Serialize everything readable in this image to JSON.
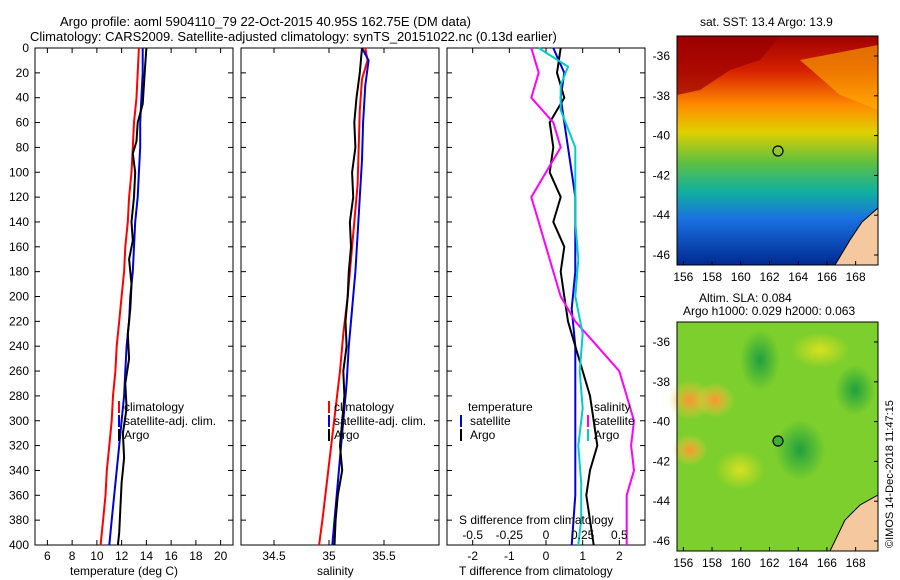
{
  "header": {
    "line1": "Argo profile: aoml 5904110_79 22-Oct-2015 40.95S 162.75E (DM data)",
    "line2": "Climatology: CARS2009. Satellite-adjusted climatology: synTS_20151022.nc (0.13d earlier)"
  },
  "colors": {
    "climatology": "#ff0000",
    "satellite": "#0000dd",
    "argo": "#000000",
    "salinity_diff": "#ff00ff",
    "argo_sal_diff": "#00cccc"
  },
  "chart_data": [
    {
      "type": "line",
      "id": "temperature",
      "xlabel": "temperature (deg C)",
      "ylabel": "",
      "xlim": [
        5,
        21
      ],
      "ylim": [
        400,
        0
      ],
      "xticks": [
        "6",
        "8",
        "10",
        "12",
        "14",
        "16",
        "18",
        "20"
      ],
      "xtick_values": [
        6,
        8,
        10,
        12,
        14,
        16,
        18,
        20
      ],
      "yticks": [
        "0",
        "20",
        "40",
        "60",
        "80",
        "100",
        "120",
        "140",
        "160",
        "180",
        "200",
        "220",
        "240",
        "260",
        "280",
        "300",
        "320",
        "340",
        "360",
        "380",
        "400"
      ],
      "legend": [
        "climatology",
        "satellite-adj. clim.",
        "Argo"
      ],
      "series": [
        {
          "name": "climatology",
          "color": "#ff0000",
          "points": [
            [
              13.4,
              0
            ],
            [
              13.3,
              20
            ],
            [
              13.2,
              40
            ],
            [
              13.0,
              60
            ],
            [
              12.9,
              80
            ],
            [
              12.8,
              100
            ],
            [
              12.6,
              120
            ],
            [
              12.5,
              140
            ],
            [
              12.3,
              160
            ],
            [
              12.2,
              180
            ],
            [
              12.0,
              200
            ],
            [
              11.8,
              220
            ],
            [
              11.6,
              240
            ],
            [
              11.5,
              260
            ],
            [
              11.3,
              280
            ],
            [
              11.2,
              300
            ],
            [
              11.0,
              320
            ],
            [
              10.8,
              340
            ],
            [
              10.7,
              360
            ],
            [
              10.5,
              380
            ],
            [
              10.3,
              400
            ]
          ]
        },
        {
          "name": "satellite-adj. clim.",
          "color": "#0000dd",
          "points": [
            [
              13.7,
              0
            ],
            [
              13.7,
              20
            ],
            [
              13.6,
              40
            ],
            [
              13.5,
              60
            ],
            [
              13.5,
              80
            ],
            [
              13.4,
              100
            ],
            [
              13.3,
              120
            ],
            [
              13.1,
              140
            ],
            [
              13.0,
              160
            ],
            [
              12.9,
              180
            ],
            [
              12.7,
              200
            ],
            [
              12.6,
              220
            ],
            [
              12.4,
              240
            ],
            [
              12.3,
              260
            ],
            [
              12.2,
              280
            ],
            [
              12.0,
              300
            ],
            [
              11.8,
              320
            ],
            [
              11.6,
              340
            ],
            [
              11.4,
              360
            ],
            [
              11.2,
              380
            ],
            [
              11.0,
              400
            ]
          ]
        },
        {
          "name": "Argo",
          "color": "#000000",
          "points": [
            [
              14.0,
              0
            ],
            [
              13.9,
              15
            ],
            [
              13.8,
              30
            ],
            [
              13.7,
              45
            ],
            [
              13.3,
              60
            ],
            [
              13.2,
              75
            ],
            [
              12.9,
              85
            ],
            [
              13.1,
              100
            ],
            [
              13.0,
              120
            ],
            [
              12.8,
              140
            ],
            [
              12.9,
              155
            ],
            [
              12.6,
              170
            ],
            [
              12.8,
              190
            ],
            [
              12.7,
              210
            ],
            [
              12.5,
              230
            ],
            [
              12.6,
              250
            ],
            [
              12.3,
              270
            ],
            [
              12.4,
              290
            ],
            [
              12.1,
              310
            ],
            [
              12.2,
              330
            ],
            [
              12.0,
              350
            ],
            [
              11.9,
              370
            ],
            [
              11.8,
              390
            ],
            [
              11.7,
              400
            ]
          ]
        }
      ]
    },
    {
      "type": "line",
      "id": "salinity",
      "xlabel": "salinity",
      "xlim": [
        34.2,
        36.0
      ],
      "ylim": [
        400,
        0
      ],
      "xticks": [
        "34.5",
        "35",
        "35.5"
      ],
      "xtick_values": [
        34.5,
        35,
        35.5
      ],
      "legend": [
        "climatology",
        "satellite-adj. clim.",
        "Argo"
      ],
      "series": [
        {
          "name": "climatology",
          "color": "#ff0000",
          "points": [
            [
              35.33,
              0
            ],
            [
              35.35,
              10
            ],
            [
              35.3,
              25
            ],
            [
              35.28,
              50
            ],
            [
              35.27,
              80
            ],
            [
              35.26,
              110
            ],
            [
              35.23,
              140
            ],
            [
              35.2,
              170
            ],
            [
              35.17,
              200
            ],
            [
              35.13,
              230
            ],
            [
              35.1,
              260
            ],
            [
              35.06,
              290
            ],
            [
              35.02,
              320
            ],
            [
              34.98,
              350
            ],
            [
              34.94,
              380
            ],
            [
              34.91,
              400
            ]
          ]
        },
        {
          "name": "satellite-adj. clim.",
          "color": "#0000dd",
          "points": [
            [
              35.3,
              0
            ],
            [
              35.36,
              10
            ],
            [
              35.33,
              30
            ],
            [
              35.31,
              60
            ],
            [
              35.3,
              90
            ],
            [
              35.28,
              120
            ],
            [
              35.26,
              150
            ],
            [
              35.24,
              180
            ],
            [
              35.21,
              210
            ],
            [
              35.18,
              240
            ],
            [
              35.16,
              270
            ],
            [
              35.13,
              300
            ],
            [
              35.1,
              330
            ],
            [
              35.07,
              360
            ],
            [
              35.03,
              400
            ]
          ]
        },
        {
          "name": "Argo",
          "color": "#000000",
          "points": [
            [
              35.3,
              0
            ],
            [
              35.28,
              20
            ],
            [
              35.25,
              40
            ],
            [
              35.23,
              60
            ],
            [
              35.24,
              80
            ],
            [
              35.21,
              100
            ],
            [
              35.22,
              120
            ],
            [
              35.19,
              140
            ],
            [
              35.2,
              160
            ],
            [
              35.18,
              180
            ],
            [
              35.17,
              200
            ],
            [
              35.15,
              220
            ],
            [
              35.16,
              240
            ],
            [
              35.13,
              260
            ],
            [
              35.14,
              280
            ],
            [
              35.12,
              300
            ],
            [
              35.1,
              320
            ],
            [
              35.12,
              340
            ],
            [
              35.08,
              360
            ],
            [
              35.06,
              380
            ],
            [
              35.05,
              400
            ]
          ]
        }
      ]
    },
    {
      "type": "line",
      "id": "difference",
      "xlabel": "T difference from climatology",
      "x2label": "S difference from climatology",
      "xlim": [
        -2.7,
        2.7
      ],
      "x2lim": [
        -0.675,
        0.675
      ],
      "ylim": [
        400,
        0
      ],
      "xticks": [
        "-2",
        "-1",
        "0",
        "1",
        "2"
      ],
      "xtick_values": [
        -2,
        -1,
        0,
        1,
        2
      ],
      "x2ticks": [
        "-0.5",
        "-0.25",
        "0",
        "0.25",
        "0.5"
      ],
      "x2tick_values": [
        -0.5,
        -0.25,
        0,
        0.25,
        0.5
      ],
      "legend_left": [
        "temperature",
        "satellite",
        "Argo"
      ],
      "legend_right": [
        "salinity",
        "satellite",
        "Argo"
      ],
      "series": [
        {
          "name": "T satellite",
          "color": "#0000dd",
          "points": [
            [
              0.2,
              0
            ],
            [
              0.5,
              20
            ],
            [
              0.4,
              40
            ],
            [
              0.5,
              60
            ],
            [
              0.6,
              80
            ],
            [
              0.7,
              100
            ],
            [
              0.8,
              120
            ],
            [
              0.8,
              150
            ],
            [
              0.8,
              180
            ],
            [
              0.7,
              210
            ],
            [
              0.8,
              240
            ],
            [
              0.8,
              270
            ],
            [
              0.8,
              300
            ],
            [
              0.8,
              330
            ],
            [
              0.8,
              360
            ],
            [
              0.7,
              400
            ]
          ]
        },
        {
          "name": "T Argo",
          "color": "#000000",
          "points": [
            [
              0.4,
              0
            ],
            [
              0.3,
              20
            ],
            [
              0.5,
              40
            ],
            [
              0.1,
              60
            ],
            [
              0.2,
              80
            ],
            [
              0.1,
              100
            ],
            [
              0.4,
              120
            ],
            [
              0.2,
              140
            ],
            [
              0.5,
              160
            ],
            [
              0.4,
              180
            ],
            [
              0.5,
              200
            ],
            [
              0.6,
              220
            ],
            [
              0.8,
              240
            ],
            [
              1.0,
              260
            ],
            [
              1.2,
              280
            ],
            [
              1.3,
              300
            ],
            [
              1.4,
              320
            ],
            [
              1.2,
              340
            ],
            [
              1.1,
              360
            ],
            [
              1.2,
              380
            ],
            [
              1.3,
              400
            ]
          ]
        },
        {
          "name": "S satellite",
          "color": "#ff00ff",
          "points": [
            [
              -0.1,
              0
            ],
            [
              -0.05,
              20
            ],
            [
              -0.1,
              40
            ],
            [
              0.05,
              60
            ],
            [
              0.1,
              80
            ],
            [
              0.0,
              100
            ],
            [
              -0.1,
              120
            ],
            [
              -0.05,
              140
            ],
            [
              0.0,
              160
            ],
            [
              0.05,
              180
            ],
            [
              0.1,
              200
            ],
            [
              0.2,
              220
            ],
            [
              0.35,
              240
            ],
            [
              0.5,
              260
            ],
            [
              0.55,
              280
            ],
            [
              0.6,
              300
            ],
            [
              0.58,
              320
            ],
            [
              0.6,
              340
            ],
            [
              0.55,
              360
            ],
            [
              0.55,
              380
            ],
            [
              0.55,
              400
            ]
          ]
        },
        {
          "name": "S Argo",
          "color": "#00cccc",
          "points": [
            [
              -0.05,
              0
            ],
            [
              0.15,
              15
            ],
            [
              0.1,
              30
            ],
            [
              0.1,
              50
            ],
            [
              0.2,
              80
            ],
            [
              0.2,
              110
            ],
            [
              0.2,
              140
            ],
            [
              0.22,
              170
            ],
            [
              0.2,
              200
            ],
            [
              0.25,
              230
            ],
            [
              0.23,
              260
            ],
            [
              0.25,
              290
            ],
            [
              0.22,
              320
            ],
            [
              0.24,
              350
            ],
            [
              0.24,
              380
            ],
            [
              0.22,
              400
            ]
          ]
        }
      ]
    },
    {
      "type": "heatmap",
      "id": "sst_map",
      "title": "sat. SST: 13.4 Argo: 13.9",
      "xticks": [
        "156",
        "158",
        "160",
        "162",
        "164",
        "166",
        "168"
      ],
      "yticks": [
        "-36",
        "-38",
        "-40",
        "-42",
        "-44",
        "-46"
      ]
    },
    {
      "type": "heatmap",
      "id": "sla_map",
      "title": "Altim. SLA: 0.084",
      "subtitle": "Argo h1000: 0.029 h2000: 0.063",
      "xticks": [
        "156",
        "158",
        "160",
        "162",
        "164",
        "166",
        "168"
      ],
      "yticks": [
        "-36",
        "-38",
        "-40",
        "-42",
        "-44",
        "-46"
      ]
    }
  ],
  "footer": {
    "credit": "©IMOS 14-Dec-2018 11:47:15"
  }
}
